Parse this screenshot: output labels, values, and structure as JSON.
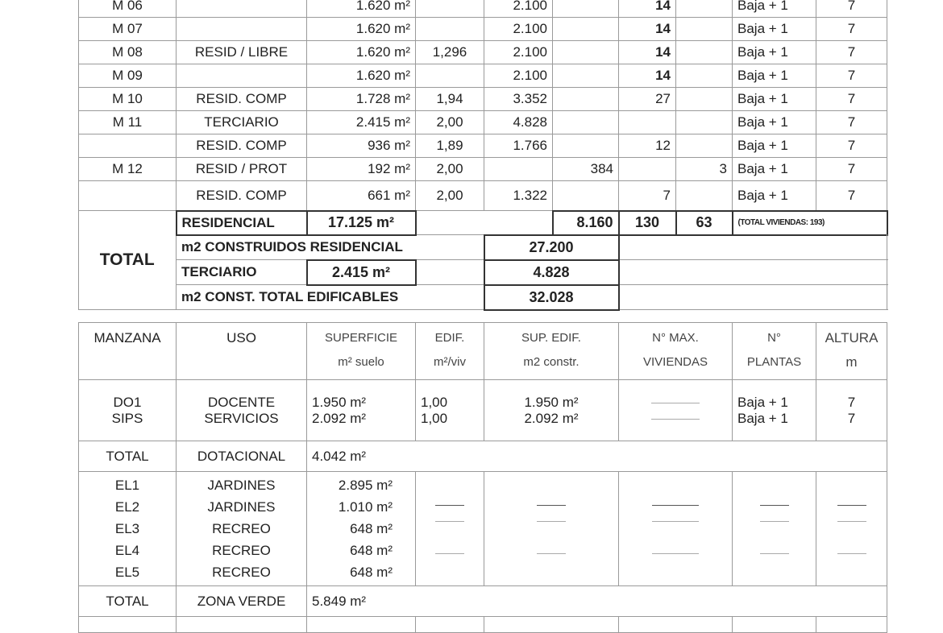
{
  "residential_rows": [
    {
      "manzana": "M 06",
      "uso": "",
      "superficie": "1.620 m²",
      "edif": "",
      "sup_edif": "2.100",
      "prot_edif": "",
      "viv_libre": "14",
      "viv_prot": "",
      "plantas": "Baja + 1",
      "altura": "7"
    },
    {
      "manzana": "M 07",
      "uso": "",
      "superficie": "1.620 m²",
      "edif": "",
      "sup_edif": "2.100",
      "prot_edif": "",
      "viv_libre": "14",
      "viv_prot": "",
      "plantas": "Baja + 1",
      "altura": "7"
    },
    {
      "manzana": "M 08",
      "uso": "RESID / LIBRE",
      "superficie": "1.620 m²",
      "edif": "1,296",
      "sup_edif": "2.100",
      "prot_edif": "",
      "viv_libre": "14",
      "viv_prot": "",
      "plantas": "Baja + 1",
      "altura": "7"
    },
    {
      "manzana": "M 09",
      "uso": "",
      "superficie": "1.620 m²",
      "edif": "",
      "sup_edif": "2.100",
      "prot_edif": "",
      "viv_libre": "14",
      "viv_prot": "",
      "plantas": "Baja + 1",
      "altura": "7"
    },
    {
      "manzana": "M 10",
      "uso": "RESID. COMP",
      "superficie": "1.728 m²",
      "edif": "1,94",
      "sup_edif": "3.352",
      "prot_edif": "",
      "viv_libre": "27",
      "viv_prot": "",
      "plantas": "Baja + 1",
      "altura": "7"
    },
    {
      "manzana": "M 11",
      "uso": "TERCIARIO",
      "superficie": "2.415 m²",
      "edif": "2,00",
      "sup_edif": "4.828",
      "prot_edif": "",
      "viv_libre": "",
      "viv_prot": "",
      "plantas": "Baja + 1",
      "altura": "7"
    },
    {
      "manzana": "",
      "uso": "RESID. COMP",
      "superficie": "936 m²",
      "edif": "1,89",
      "sup_edif": "1.766",
      "prot_edif": "",
      "viv_libre": "12",
      "viv_prot": "",
      "plantas": "Baja + 1",
      "altura": "7"
    },
    {
      "manzana": "M 12",
      "uso": "RESID / PROT",
      "superficie": "192 m²",
      "edif": "2,00",
      "sup_edif": "",
      "prot_edif": "384",
      "viv_libre": "",
      "viv_prot": "3",
      "plantas": "Baja + 1",
      "altura": "7"
    },
    {
      "manzana": "",
      "uso": "RESID. COMP",
      "superficie": "661 m²",
      "edif": "2,00",
      "sup_edif": "1.322",
      "prot_edif": "",
      "viv_libre": "7",
      "viv_prot": "",
      "plantas": "Baja + 1",
      "altura": "7"
    }
  ],
  "total": {
    "label": "TOTAL",
    "residencial_label": "RESIDENCIAL",
    "residencial_sup": "17.125 m²",
    "prot_edif": "8.160",
    "viv_libre": "130",
    "viv_prot": "63",
    "total_viviendas": "(TOTAL VIVIENDAS: 193)",
    "m2_res_label": "m2 CONSTRUIDOS RESIDENCIAL",
    "m2_res": "27.200",
    "terciario_label": "TERCIARIO",
    "terciario_sup": "2.415 m²",
    "terciario_m2": "4.828",
    "m2_total_label": "m2 CONST. TOTAL EDIFICABLES",
    "m2_total": "32.028"
  },
  "header": {
    "manzana": "MANZANA",
    "uso": "USO",
    "superficie": "SUPERFICIE",
    "superficie_unit": "m² suelo",
    "edif": "EDIF.",
    "edif_unit": "m²/viv",
    "sup_edif": "SUP. EDIF.",
    "sup_edif_unit": "m2 constr.",
    "viviendas": "N° MAX.",
    "viviendas_unit": "VIVIENDAS",
    "plantas": "N°",
    "plantas_unit": "PLANTAS",
    "altura": "ALTURA",
    "altura_unit": "m"
  },
  "dotacional_rows": [
    {
      "manzana": "DO1",
      "uso": "DOCENTE",
      "superficie": "1.950 m²",
      "edif": "1,00",
      "sup_edif": "1.950 m²",
      "plantas": "Baja + 1",
      "altura": "7"
    },
    {
      "manzana": "SIPS",
      "uso": "SERVICIOS",
      "superficie": "2.092 m²",
      "edif": "1,00",
      "sup_edif": "2.092 m²",
      "plantas": "Baja + 1",
      "altura": "7"
    }
  ],
  "dotacional_total": {
    "label": "TOTAL",
    "uso": "DOTACIONAL",
    "superficie": "4.042 m²"
  },
  "verde_rows": [
    {
      "manzana": "EL1",
      "uso": "JARDINES",
      "superficie": "2.895 m²"
    },
    {
      "manzana": "EL2",
      "uso": "JARDINES",
      "superficie": "1.010 m²"
    },
    {
      "manzana": "EL3",
      "uso": "RECREO",
      "superficie": "648 m²"
    },
    {
      "manzana": "EL4",
      "uso": "RECREO",
      "superficie": "648 m²"
    },
    {
      "manzana": "EL5",
      "uso": "RECREO",
      "superficie": "648 m²"
    }
  ],
  "verde_total": {
    "label": "TOTAL",
    "uso": "ZONA VERDE",
    "superficie": "5.849 m²"
  }
}
